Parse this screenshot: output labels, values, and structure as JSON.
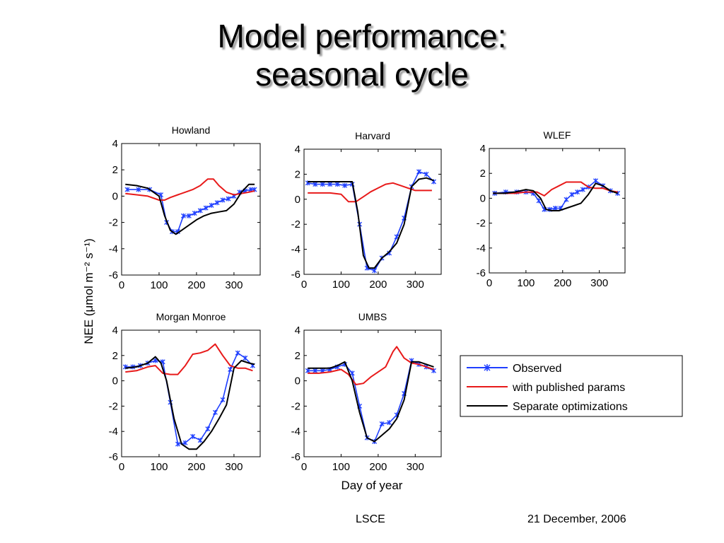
{
  "slide": {
    "title_line1": "Model performance:",
    "title_line2": "seasonal cycle",
    "footer_left": "LSCE",
    "footer_right": "21 December, 2006"
  },
  "colors": {
    "observed": "#1f3fff",
    "published": "#e81a1a",
    "separate": "#000000"
  },
  "shared_axes": {
    "ylabel": "NEE (μmol m⁻² s⁻¹)",
    "xlabel": "Day of year"
  },
  "legend": {
    "observed": "Observed",
    "published": "with published params",
    "separate": "Separate optimizations"
  },
  "chart_data": [
    {
      "type": "line",
      "title": "Howland",
      "xlim": [
        0,
        370
      ],
      "ylim": [
        -6,
        4
      ],
      "x_ticks": [
        0,
        100,
        200,
        300
      ],
      "y_ticks": [
        4,
        2,
        0,
        -2,
        -4,
        -6
      ],
      "series": [
        {
          "name": "Observed",
          "x": [
            15,
            45,
            75,
            105,
            120,
            135,
            150,
            165,
            180,
            195,
            210,
            225,
            240,
            255,
            270,
            285,
            300,
            315,
            330,
            345,
            355
          ],
          "y": [
            0.5,
            0.5,
            0.5,
            0.1,
            -2.0,
            -2.7,
            -2.7,
            -1.5,
            -1.5,
            -1.3,
            -1.1,
            -0.9,
            -0.7,
            -0.5,
            -0.3,
            -0.2,
            0.0,
            0.3,
            0.4,
            0.5,
            0.5
          ]
        },
        {
          "name": "with published params",
          "x": [
            10,
            40,
            70,
            100,
            115,
            130,
            150,
            170,
            190,
            210,
            230,
            245,
            260,
            280,
            300,
            320,
            340,
            355
          ],
          "y": [
            0.2,
            0.1,
            0.0,
            -0.3,
            -0.3,
            -0.1,
            0.1,
            0.3,
            0.5,
            0.8,
            1.3,
            1.3,
            0.8,
            0.3,
            0.1,
            0.2,
            0.3,
            0.4
          ]
        },
        {
          "name": "Separate optimizations",
          "x": [
            10,
            40,
            70,
            100,
            115,
            130,
            145,
            160,
            180,
            200,
            220,
            240,
            260,
            280,
            300,
            320,
            340,
            355
          ],
          "y": [
            0.9,
            0.8,
            0.6,
            0.0,
            -1.5,
            -2.6,
            -2.9,
            -2.6,
            -2.2,
            -1.8,
            -1.5,
            -1.3,
            -1.2,
            -1.1,
            -0.6,
            0.3,
            0.9,
            0.9
          ]
        }
      ]
    },
    {
      "type": "line",
      "title": "Harvard",
      "xlim": [
        0,
        370
      ],
      "ylim": [
        -6,
        4
      ],
      "x_ticks": [
        0,
        100,
        200,
        300
      ],
      "y_ticks": [
        4,
        2,
        0,
        -2,
        -4,
        -6
      ],
      "series": [
        {
          "name": "Observed",
          "x": [
            10,
            30,
            50,
            70,
            90,
            110,
            130,
            150,
            170,
            190,
            210,
            230,
            250,
            270,
            290,
            310,
            330,
            350
          ],
          "y": [
            1.3,
            1.2,
            1.2,
            1.2,
            1.2,
            1.1,
            1.2,
            -2.0,
            -5.5,
            -5.7,
            -4.7,
            -4.3,
            -3.0,
            -1.5,
            1.0,
            2.2,
            2.0,
            1.4
          ]
        },
        {
          "name": "with published params",
          "x": [
            10,
            40,
            70,
            100,
            120,
            140,
            160,
            180,
            200,
            220,
            240,
            260,
            280,
            300,
            320,
            345
          ],
          "y": [
            0.5,
            0.5,
            0.5,
            0.4,
            -0.2,
            -0.2,
            0.2,
            0.6,
            0.9,
            1.2,
            1.3,
            1.1,
            0.9,
            0.7,
            0.7,
            0.7
          ]
        },
        {
          "name": "Separate optimizations",
          "x": [
            10,
            40,
            70,
            100,
            130,
            145,
            160,
            175,
            190,
            210,
            230,
            250,
            270,
            290,
            310,
            330,
            350
          ],
          "y": [
            1.4,
            1.4,
            1.4,
            1.4,
            1.4,
            -1.0,
            -4.5,
            -5.5,
            -5.5,
            -4.7,
            -4.2,
            -3.5,
            -2.0,
            1.0,
            1.6,
            1.7,
            1.5
          ]
        }
      ]
    },
    {
      "type": "line",
      "title": "WLEF",
      "xlim": [
        0,
        370
      ],
      "ylim": [
        -6,
        4
      ],
      "x_ticks": [
        0,
        100,
        200,
        300
      ],
      "y_ticks": [
        4,
        2,
        0,
        -2,
        -4,
        -6
      ],
      "series": [
        {
          "name": "Observed",
          "x": [
            15,
            45,
            75,
            100,
            120,
            135,
            150,
            165,
            180,
            195,
            210,
            225,
            240,
            255,
            270,
            290,
            310,
            330,
            350
          ],
          "y": [
            0.4,
            0.5,
            0.5,
            0.5,
            0.4,
            -0.2,
            -0.9,
            -0.9,
            -0.8,
            -0.8,
            -0.1,
            0.3,
            0.5,
            0.7,
            0.9,
            1.4,
            1.0,
            0.6,
            0.4
          ]
        },
        {
          "name": "with published params",
          "x": [
            10,
            40,
            70,
            100,
            130,
            150,
            170,
            190,
            210,
            230,
            250,
            270,
            290,
            310,
            330,
            350
          ],
          "y": [
            0.4,
            0.4,
            0.4,
            0.5,
            0.5,
            0.2,
            0.7,
            1.0,
            1.3,
            1.3,
            1.3,
            0.9,
            0.8,
            0.8,
            0.6,
            0.5
          ]
        },
        {
          "name": "Separate optimizations",
          "x": [
            10,
            40,
            70,
            100,
            120,
            140,
            155,
            170,
            190,
            210,
            230,
            250,
            270,
            290,
            310,
            330,
            350
          ],
          "y": [
            0.4,
            0.4,
            0.5,
            0.7,
            0.6,
            0.0,
            -0.9,
            -1.0,
            -1.0,
            -0.8,
            -0.6,
            -0.4,
            0.3,
            1.2,
            1.0,
            0.6,
            0.4
          ]
        }
      ]
    },
    {
      "type": "line",
      "title": "Morgan Monroe",
      "xlim": [
        0,
        370
      ],
      "ylim": [
        -6,
        4
      ],
      "x_ticks": [
        0,
        100,
        200,
        300
      ],
      "y_ticks": [
        4,
        2,
        0,
        -2,
        -4,
        -6
      ],
      "series": [
        {
          "name": "Observed",
          "x": [
            10,
            30,
            50,
            70,
            90,
            110,
            130,
            150,
            170,
            190,
            210,
            230,
            250,
            270,
            290,
            310,
            330,
            350
          ],
          "y": [
            1.1,
            1.1,
            1.2,
            1.4,
            1.6,
            1.5,
            -1.7,
            -5.0,
            -4.9,
            -4.4,
            -4.7,
            -3.8,
            -2.5,
            -1.5,
            0.9,
            2.2,
            1.8,
            1.2
          ]
        },
        {
          "name": "with published params",
          "x": [
            10,
            40,
            70,
            90,
            110,
            130,
            150,
            170,
            190,
            210,
            230,
            250,
            270,
            290,
            310,
            330,
            350
          ],
          "y": [
            0.7,
            0.8,
            1.1,
            1.2,
            0.6,
            0.5,
            0.5,
            1.2,
            2.1,
            2.2,
            2.4,
            2.9,
            2.0,
            1.2,
            1.0,
            1.0,
            0.8
          ]
        },
        {
          "name": "Separate optimizations",
          "x": [
            10,
            40,
            70,
            90,
            105,
            120,
            140,
            160,
            180,
            200,
            220,
            240,
            260,
            280,
            300,
            320,
            340,
            355
          ],
          "y": [
            1.0,
            1.1,
            1.4,
            1.9,
            1.4,
            0.0,
            -3.0,
            -5.0,
            -5.4,
            -5.4,
            -4.8,
            -4.0,
            -3.0,
            -1.9,
            1.0,
            1.6,
            1.4,
            1.3
          ]
        }
      ]
    },
    {
      "type": "line",
      "title": "UMBS",
      "xlim": [
        0,
        370
      ],
      "ylim": [
        -6,
        4
      ],
      "x_ticks": [
        0,
        100,
        200,
        300
      ],
      "y_ticks": [
        4,
        2,
        0,
        -2,
        -4,
        -6
      ],
      "series": [
        {
          "name": "Observed",
          "x": [
            10,
            30,
            50,
            70,
            90,
            110,
            130,
            150,
            170,
            190,
            210,
            230,
            250,
            270,
            290,
            310,
            330,
            350
          ],
          "y": [
            0.8,
            0.8,
            0.8,
            0.9,
            1.1,
            1.3,
            0.6,
            -2.0,
            -4.5,
            -4.8,
            -3.4,
            -3.3,
            -2.7,
            -1.0,
            1.6,
            1.3,
            1.1,
            0.8
          ]
        },
        {
          "name": "with published params",
          "x": [
            10,
            40,
            70,
            100,
            120,
            140,
            160,
            180,
            200,
            220,
            240,
            250,
            270,
            290,
            310,
            330,
            350
          ],
          "y": [
            0.6,
            0.6,
            0.7,
            0.9,
            0.5,
            -0.3,
            -0.2,
            0.3,
            0.7,
            1.1,
            2.3,
            2.7,
            1.8,
            1.4,
            1.3,
            1.1,
            0.9
          ]
        },
        {
          "name": "Separate optimizations",
          "x": [
            10,
            40,
            70,
            90,
            110,
            130,
            150,
            170,
            190,
            210,
            230,
            250,
            270,
            290,
            310,
            330,
            350
          ],
          "y": [
            1.0,
            1.0,
            1.0,
            1.2,
            1.5,
            0.0,
            -2.5,
            -4.5,
            -4.8,
            -4.3,
            -3.8,
            -3.0,
            -1.5,
            1.5,
            1.5,
            1.3,
            1.1
          ]
        }
      ]
    }
  ]
}
